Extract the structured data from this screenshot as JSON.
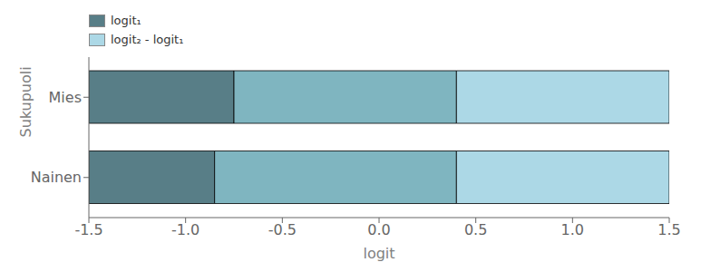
{
  "chart_data": {
    "type": "bar",
    "orientation": "horizontal",
    "xlabel": "logit",
    "ylabel": "Sukupuoli",
    "categories": [
      "Mies",
      "Nainen"
    ],
    "series": [
      {
        "name": "logit₁",
        "color": "#587e87",
        "values": [
          -0.75,
          -0.85
        ]
      },
      {
        "color": "#7fb5c0",
        "values": [
          0.4,
          0.4
        ]
      },
      {
        "name": "logit₂ - logit₁",
        "color": "#acd8e6",
        "values": [
          1.5,
          1.5
        ]
      }
    ],
    "xlim": [
      -1.5,
      1.5
    ],
    "xticks": [
      -1.5,
      {
        "value": -1.0,
        "label": "-1.0"
      },
      -0.5,
      {
        "value": 0.0,
        "label": "0.0"
      },
      0.5,
      {
        "value": 1.0,
        "label": "1.0"
      },
      1.5
    ]
  }
}
